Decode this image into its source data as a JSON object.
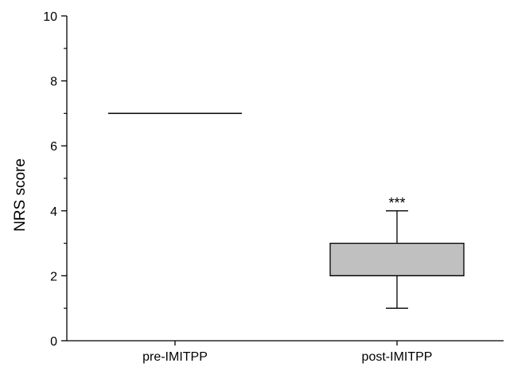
{
  "chart_data": {
    "type": "boxplot",
    "title": "",
    "xlabel": "",
    "ylabel": "NRS score",
    "ylim": [
      0,
      10
    ],
    "yticks": [
      0,
      2,
      4,
      6,
      8,
      10
    ],
    "yticks_minor": [
      1,
      3,
      5,
      7,
      9
    ],
    "grid": false,
    "legend": "none",
    "box_fill": "#c0c0c0",
    "categories": [
      "pre-IMITPP",
      "post-IMITPP"
    ],
    "boxes": [
      {
        "category": "pre-IMITPP",
        "whisker_low": 7,
        "q1": 7,
        "median": 7,
        "q3": 7,
        "whisker_high": 7,
        "annotation": ""
      },
      {
        "category": "post-IMITPP",
        "whisker_low": 1,
        "q1": 2,
        "median": 2,
        "q3": 3,
        "whisker_high": 4,
        "annotation": "***"
      }
    ]
  }
}
